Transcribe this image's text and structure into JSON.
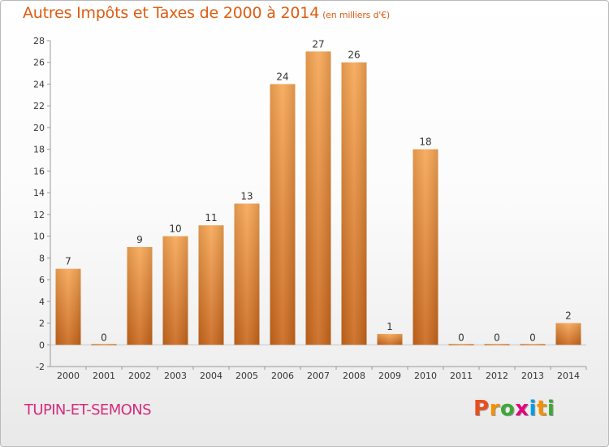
{
  "header": {
    "title": "Autres Impôts et Taxes de 2000 à 2014",
    "unit": "(en milliers d'€)"
  },
  "footer": {
    "commune": "TUPIN-ET-SEMONS",
    "logo_letters": [
      "P",
      "r",
      "o",
      "x",
      "i",
      "t",
      "i"
    ],
    "logo_colors": [
      "#e94e1b",
      "#f39200",
      "#3aaa35",
      "#e6007e",
      "#009fe3",
      "#f39200",
      "#3aaa35"
    ]
  },
  "chart_data": {
    "type": "bar",
    "title": "Autres Impôts et Taxes de 2000 à 2014",
    "subtitle": "(en milliers d'€)",
    "categories": [
      "2000",
      "2001",
      "2002",
      "2003",
      "2004",
      "2005",
      "2006",
      "2007",
      "2008",
      "2009",
      "2010",
      "2011",
      "2012",
      "2013",
      "2014"
    ],
    "values": [
      7,
      0,
      9,
      10,
      11,
      13,
      24,
      27,
      26,
      1,
      18,
      0,
      0,
      0,
      2
    ],
    "data_labels": [
      "7",
      "0",
      "9",
      "10",
      "11",
      "13",
      "24",
      "27",
      "26",
      "1",
      "18",
      "0",
      "0",
      "0",
      "2"
    ],
    "yticks": [
      -2,
      0,
      2,
      4,
      6,
      8,
      10,
      12,
      14,
      16,
      18,
      20,
      22,
      24,
      26,
      28
    ],
    "ylim": [
      -2,
      28
    ],
    "grid": false,
    "bar_color": "#f0923b",
    "text_color": "#dd5c12"
  }
}
